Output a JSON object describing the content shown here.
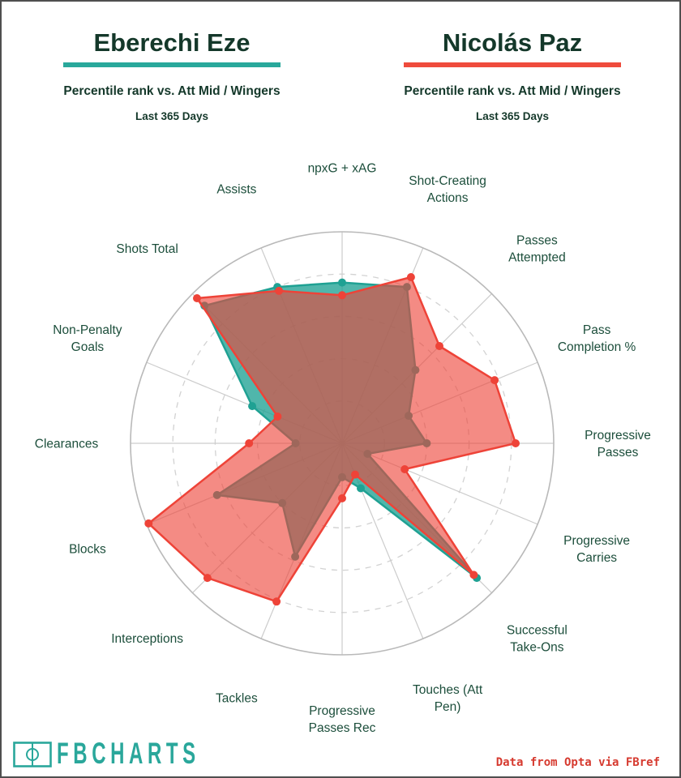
{
  "header": {
    "left": {
      "name": "Eberechi Eze",
      "underline_color": "#29a89b",
      "subtitle": "Percentile rank vs. Att Mid / Wingers",
      "period": "Last 365 Days"
    },
    "right": {
      "name": "Nicolás Paz",
      "underline_color": "#ef4b3c",
      "subtitle": "Percentile rank vs. Att Mid / Wingers",
      "period": "Last 365 Days"
    }
  },
  "chart_data": {
    "type": "radar",
    "title": "Percentile rank vs. Att Mid / Wingers, Last 365 Days",
    "axes": [
      {
        "label": "npxG + xAG",
        "lines": [
          "npxG + xAG"
        ]
      },
      {
        "label": "Shot-Creating Actions",
        "lines": [
          "Shot-Creating",
          "Actions"
        ]
      },
      {
        "label": "Passes Attempted",
        "lines": [
          "Passes",
          "Attempted"
        ]
      },
      {
        "label": "Pass Completion %",
        "lines": [
          "Pass",
          "Completion %"
        ]
      },
      {
        "label": "Progressive Passes",
        "lines": [
          "Progressive",
          "Passes"
        ]
      },
      {
        "label": "Progressive Carries",
        "lines": [
          "Progressive",
          "Carries"
        ]
      },
      {
        "label": "Successful Take-Ons",
        "lines": [
          "Successful",
          "Take-Ons"
        ]
      },
      {
        "label": "Touches (Att Pen)",
        "lines": [
          "Touches (Att",
          "Pen)"
        ]
      },
      {
        "label": "Progressive Passes Rec",
        "lines": [
          "Progressive",
          "Passes Rec"
        ]
      },
      {
        "label": "Tackles",
        "lines": [
          "Tackles"
        ]
      },
      {
        "label": "Interceptions",
        "lines": [
          "Interceptions"
        ]
      },
      {
        "label": "Blocks",
        "lines": [
          "Blocks"
        ]
      },
      {
        "label": "Clearances",
        "lines": [
          "Clearances"
        ]
      },
      {
        "label": "Non-Penalty Goals",
        "lines": [
          "Non-Penalty",
          "Goals"
        ]
      },
      {
        "label": "Shots Total",
        "lines": [
          "Shots Total"
        ]
      },
      {
        "label": "Assists",
        "lines": [
          "Assists"
        ]
      }
    ],
    "series": [
      {
        "name": "Eberechi Eze",
        "color": "#1fa193",
        "fill_opacity": 0.78,
        "values": [
          76,
          80,
          49,
          34,
          40,
          13,
          90,
          23,
          16,
          58,
          40,
          64,
          22,
          46,
          92,
          80
        ]
      },
      {
        "name": "Nicolás Paz",
        "color": "#ee4338",
        "fill_opacity": 0.62,
        "values": [
          70,
          85,
          65,
          78,
          82,
          32,
          88,
          16,
          26,
          81,
          90,
          99,
          44,
          33,
          97,
          78
        ]
      }
    ],
    "scale": {
      "min": 0,
      "max": 100,
      "grid_rings": [
        20,
        40,
        60,
        80
      ],
      "outer_ring": 100
    },
    "layout": {
      "center_x": 420,
      "center_y": 545,
      "radius": 261,
      "label_radius": 340,
      "start": "top",
      "direction": "clockwise",
      "ring_color": "#b9b9b9",
      "dashed_ring_color": "#d2d2d2",
      "spoke_color": "#cccccc",
      "label_color": "#1c4e3b",
      "dot_radius": 5,
      "line_width": 2.5
    }
  },
  "footer": {
    "brand": "FBCHARTS",
    "brand_color": "#2aa79b",
    "attribution": "Data from Opta via FBref",
    "attribution_color": "#d63a2f"
  }
}
